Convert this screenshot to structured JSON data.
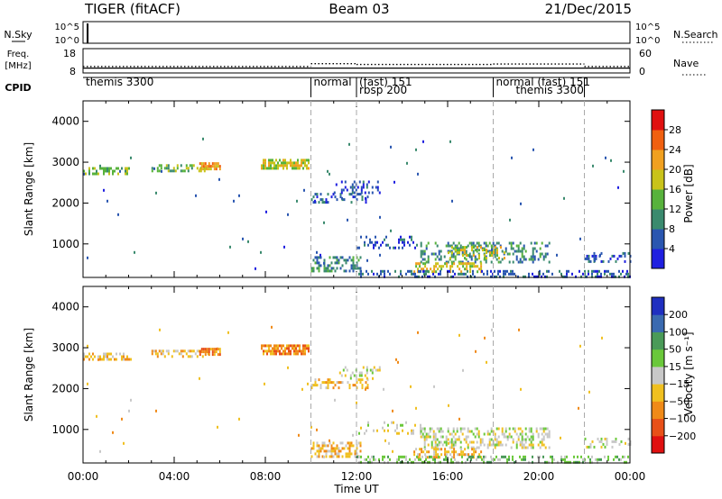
{
  "header": {
    "radar": "TIGER (fitACF)",
    "beam": "Beam 03",
    "date": "21/Dec/2015"
  },
  "top_panels": {
    "nsky_label": "N.Sky",
    "nsky_ticks": [
      "10^5",
      "10^0"
    ],
    "nsearch_label": "N.Search",
    "freq_label_1": "Freq.",
    "freq_label_2": "[MHz]",
    "freq_ticks": [
      "18",
      "8"
    ],
    "nave_label": "Nave",
    "nave_ticks": [
      "60",
      "0"
    ],
    "cpid_label": "CPID"
  },
  "cpid_segments": [
    {
      "label": "themis 3300",
      "start": 0,
      "end": 10
    },
    {
      "label": "normal",
      "start": 10,
      "end": 12
    },
    {
      "label": "(fast) 151",
      "start": 12,
      "end": 18
    },
    {
      "label": "rbsp 200",
      "start": 12,
      "end": 18
    },
    {
      "label": "normal (fast) 151",
      "start": 18,
      "end": 22
    },
    {
      "label": "themis 3300",
      "start": 18,
      "end": 22
    }
  ],
  "axes": {
    "ylabel": "Slant Range [km]",
    "xlabel": "Time UT",
    "y_ticks": [
      "1000",
      "2000",
      "3000",
      "4000"
    ],
    "x_ticks": [
      "00:00",
      "04:00",
      "08:00",
      "12:00",
      "16:00",
      "20:00",
      "00:00"
    ]
  },
  "colorbars": {
    "power": {
      "label": "Power [dB]",
      "ticks": [
        "28",
        "24",
        "20",
        "16",
        "12",
        "8",
        "4"
      ],
      "colors": [
        "#1f1fe0",
        "#2a56b0",
        "#3a8a6e",
        "#57b23c",
        "#c9c31a",
        "#f0a020",
        "#f06010",
        "#e01010"
      ]
    },
    "velocity": {
      "label": "Velocity [m s⁻¹]",
      "ticks": [
        "200",
        "100",
        "50",
        "15",
        "−15",
        "−50",
        "−100",
        "−200"
      ],
      "colors": [
        "#1f2fc0",
        "#3a6ab0",
        "#4a9a58",
        "#6ac83a",
        "#c8c8c8",
        "#f0c020",
        "#f08a18",
        "#e85018",
        "#e01010"
      ]
    }
  },
  "chart_data": {
    "type": "heatmap",
    "title": "TIGER (fitACF)",
    "xlabel": "Time UT",
    "ylabel": "Slant Range [km]",
    "x_unit": "hours UT",
    "xlim": [
      0,
      24
    ],
    "ylim": [
      180,
      4500
    ],
    "freq_mhz": [
      {
        "start": 0,
        "end": 10,
        "value": 10
      },
      {
        "start": 10,
        "end": 22,
        "value": 10
      },
      {
        "start": 22,
        "end": 24,
        "value": 10
      }
    ],
    "nave": [
      {
        "start": 0,
        "end": 10,
        "value": 16
      },
      {
        "start": 10,
        "end": 12,
        "value": 23
      },
      {
        "start": 12,
        "end": 18,
        "value": 21
      },
      {
        "start": 18,
        "end": 22,
        "value": 22
      },
      {
        "start": 22,
        "end": 24,
        "value": 16
      }
    ],
    "nsky_spike_time": 0.2,
    "mode_boundaries": [
      10,
      12,
      18,
      22
    ],
    "power_regions": [
      {
        "t0": 0.0,
        "t1": 2.1,
        "r0": 2700,
        "r1": 2880,
        "level": 3,
        "density": 0.5
      },
      {
        "t0": 3.0,
        "t1": 5.5,
        "r0": 2780,
        "r1": 2950,
        "level": 3,
        "density": 0.45
      },
      {
        "t0": 5.1,
        "t1": 6.0,
        "r0": 2850,
        "r1": 3000,
        "level": 5,
        "density": 0.8
      },
      {
        "t0": 7.8,
        "t1": 9.9,
        "r0": 2880,
        "r1": 3080,
        "level": 4,
        "density": 0.75
      },
      {
        "t0": 10.0,
        "t1": 12.5,
        "r0": 2050,
        "r1": 2250,
        "level": 1,
        "density": 0.35
      },
      {
        "t0": 11.0,
        "t1": 13.0,
        "r0": 2250,
        "r1": 2550,
        "level": 1,
        "density": 0.25
      },
      {
        "t0": 10.0,
        "t1": 12.2,
        "r0": 330,
        "r1": 700,
        "level": 2,
        "density": 0.5
      },
      {
        "t0": 12.0,
        "t1": 14.8,
        "r0": 900,
        "r1": 1200,
        "level": 1,
        "density": 0.2
      },
      {
        "t0": 14.8,
        "t1": 20.5,
        "r0": 550,
        "r1": 1050,
        "level": 2,
        "density": 0.35
      },
      {
        "t0": 16.0,
        "t1": 18.5,
        "r0": 650,
        "r1": 950,
        "level": 4,
        "density": 0.35
      },
      {
        "t0": 14.5,
        "t1": 17.5,
        "r0": 350,
        "r1": 550,
        "level": 4,
        "density": 0.45
      },
      {
        "t0": 12.0,
        "t1": 24.0,
        "r0": 200,
        "r1": 360,
        "level": 1,
        "density": 0.35
      },
      {
        "t0": 22.0,
        "t1": 24.0,
        "r0": 550,
        "r1": 800,
        "level": 1,
        "density": 0.3
      },
      {
        "t0": 0.0,
        "t1": 24.0,
        "r0": 200,
        "r1": 3600,
        "level": 1,
        "density": 0.004
      }
    ],
    "velocity_regions": [
      {
        "t0": 0.0,
        "t1": 2.1,
        "r0": 2700,
        "r1": 2880,
        "level": 5,
        "density": 0.5
      },
      {
        "t0": 3.0,
        "t1": 5.5,
        "r0": 2780,
        "r1": 2950,
        "level": 5,
        "density": 0.45
      },
      {
        "t0": 5.1,
        "t1": 6.0,
        "r0": 2850,
        "r1": 3000,
        "level": 6,
        "density": 0.8
      },
      {
        "t0": 7.8,
        "t1": 9.9,
        "r0": 2880,
        "r1": 3080,
        "level": 6,
        "density": 0.75
      },
      {
        "t0": 10.0,
        "t1": 12.5,
        "r0": 2050,
        "r1": 2250,
        "level": 5,
        "density": 0.35
      },
      {
        "t0": 11.0,
        "t1": 13.0,
        "r0": 2250,
        "r1": 2550,
        "level": 4,
        "density": 0.25
      },
      {
        "t0": 10.0,
        "t1": 12.2,
        "r0": 330,
        "r1": 700,
        "level": 5,
        "density": 0.5
      },
      {
        "t0": 12.0,
        "t1": 14.8,
        "r0": 900,
        "r1": 1200,
        "level": 4,
        "density": 0.2
      },
      {
        "t0": 14.8,
        "t1": 20.5,
        "r0": 550,
        "r1": 1050,
        "level": 4,
        "density": 0.4
      },
      {
        "t0": 14.5,
        "t1": 17.5,
        "r0": 350,
        "r1": 550,
        "level": 5,
        "density": 0.45
      },
      {
        "t0": 12.0,
        "t1": 24.0,
        "r0": 200,
        "r1": 360,
        "level": 3,
        "density": 0.35
      },
      {
        "t0": 22.0,
        "t1": 24.0,
        "r0": 550,
        "r1": 800,
        "level": 4,
        "density": 0.3
      },
      {
        "t0": 0.0,
        "t1": 24.0,
        "r0": 200,
        "r1": 3600,
        "level": 5,
        "density": 0.004
      }
    ]
  }
}
